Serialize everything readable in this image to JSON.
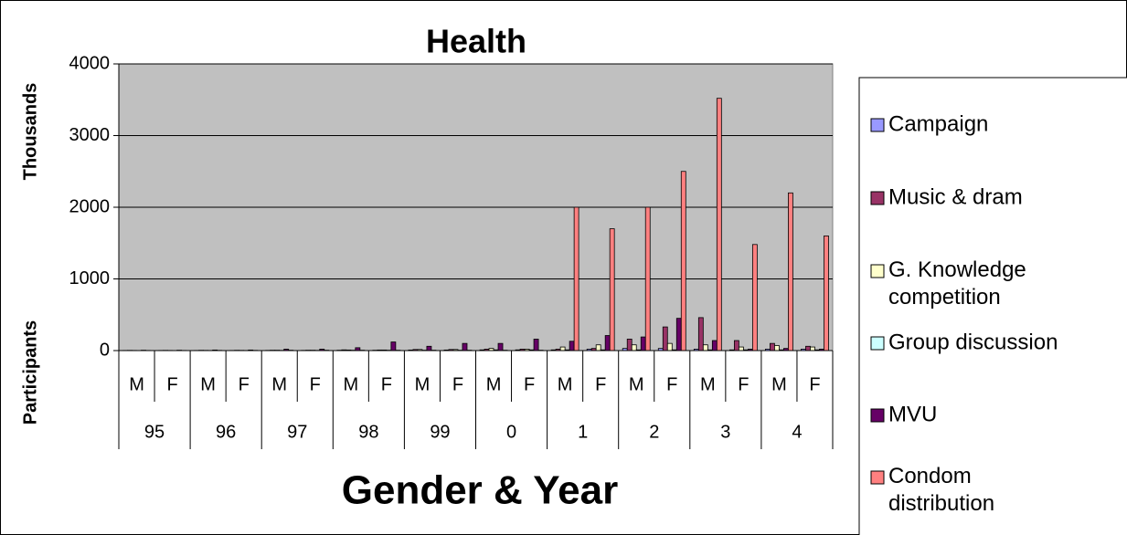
{
  "chart_data": {
    "type": "bar",
    "title": "Health",
    "y_axis_label": "Participants",
    "y_display_units": "Thousands",
    "x_axis_label": "Gender & Year",
    "categories": [
      "M",
      "F",
      "M",
      "F",
      "M",
      "F",
      "M",
      "F",
      "M",
      "F",
      "M",
      "F",
      "M",
      "F",
      "M",
      "F",
      "M",
      "F",
      "M",
      "F"
    ],
    "groups": [
      "95",
      "96",
      "97",
      "98",
      "99",
      "0",
      "1",
      "2",
      "3",
      "4"
    ],
    "ylim": [
      0,
      4000
    ],
    "yticks": [
      0,
      1000,
      2000,
      3000,
      4000
    ],
    "grid": true,
    "legend": "right",
    "series": [
      {
        "name": "Campaign",
        "color": "#9999ff",
        "values": [
          2,
          2,
          2,
          2,
          3,
          3,
          5,
          5,
          8,
          8,
          10,
          10,
          10,
          20,
          30,
          30,
          20,
          10,
          20,
          20
        ]
      },
      {
        "name": "Music & dram",
        "color": "#993366",
        "values": [
          3,
          3,
          4,
          4,
          5,
          5,
          10,
          8,
          15,
          15,
          20,
          20,
          20,
          30,
          160,
          330,
          460,
          140,
          100,
          60
        ]
      },
      {
        "name": "G. Knowledge competition",
        "color": "#ffffcc",
        "values": [
          2,
          2,
          3,
          3,
          5,
          5,
          8,
          8,
          15,
          15,
          30,
          20,
          50,
          80,
          80,
          100,
          80,
          50,
          70,
          50
        ]
      },
      {
        "name": "Group discussion",
        "color": "#ccffff",
        "values": [
          1,
          1,
          2,
          2,
          3,
          3,
          5,
          5,
          5,
          5,
          10,
          10,
          10,
          10,
          10,
          10,
          10,
          10,
          10,
          10
        ]
      },
      {
        "name": "MVU",
        "color": "#660066",
        "values": [
          5,
          5,
          8,
          8,
          20,
          20,
          40,
          120,
          60,
          100,
          100,
          160,
          130,
          210,
          190,
          450,
          140,
          20,
          30,
          20
        ]
      },
      {
        "name": "Condom distribution",
        "color": "#ff8080",
        "values": [
          2,
          2,
          3,
          3,
          5,
          5,
          5,
          5,
          5,
          5,
          5,
          5,
          2000,
          1700,
          2000,
          2500,
          3520,
          1480,
          2200,
          1600
        ]
      }
    ]
  }
}
